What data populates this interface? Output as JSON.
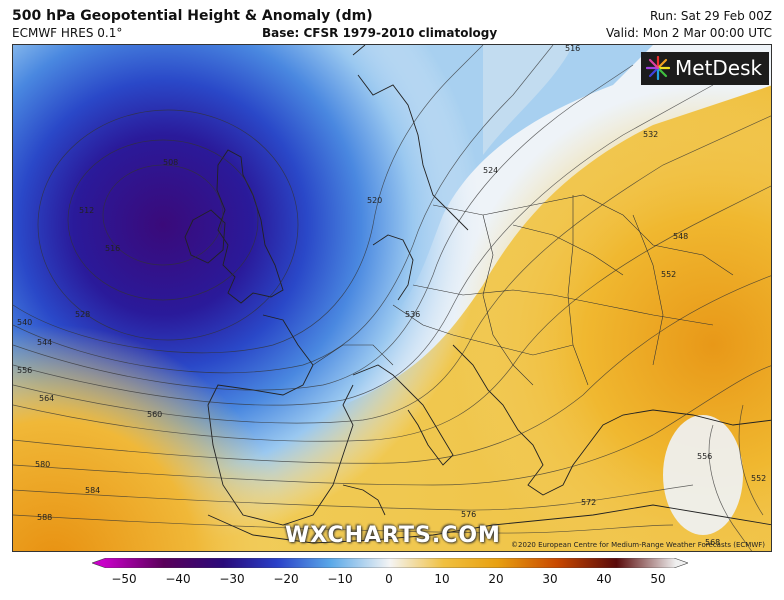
{
  "header": {
    "title": "500 hPa Geopotential Height & Anomaly (dm)",
    "model": "ECMWF HRES 0.1°",
    "base": "Base: CFSR 1979-2010 climatology",
    "run": "Run: Sat 29 Feb 00Z",
    "valid": "Valid: Mon 2 Mar 00:00 UTC"
  },
  "logo": {
    "text": "MetDesk",
    "icon": "metdesk-starburst-icon"
  },
  "watermark": "WXCHARTS.COM",
  "copyright": "©2020 European Centre for Medium-Range Weather Forecasts (ECMWF)",
  "contour_labels": [
    "516",
    "532",
    "524",
    "520",
    "548",
    "552",
    "536",
    "540",
    "544",
    "556",
    "564",
    "560",
    "580",
    "584",
    "588",
    "576",
    "572",
    "568",
    "556",
    "552",
    "508",
    "512",
    "516",
    "528"
  ],
  "colorbar": {
    "ticks": [
      "−50",
      "−40",
      "−30",
      "−20",
      "−10",
      "0",
      "10",
      "20",
      "30",
      "40",
      "50"
    ],
    "min": -50,
    "max": 50,
    "colors": {
      "minus50": "#c800c8",
      "minus40": "#5a005a",
      "minus30": "#2a0a7a",
      "minus20": "#2a40c8",
      "minus10": "#5aa8e8",
      "zero": "#f4f4f4",
      "plus10": "#f0c040",
      "plus20": "#e8a010",
      "plus30": "#c84800",
      "plus40": "#5a0a0a",
      "plus50": "#f0f0f0"
    }
  }
}
